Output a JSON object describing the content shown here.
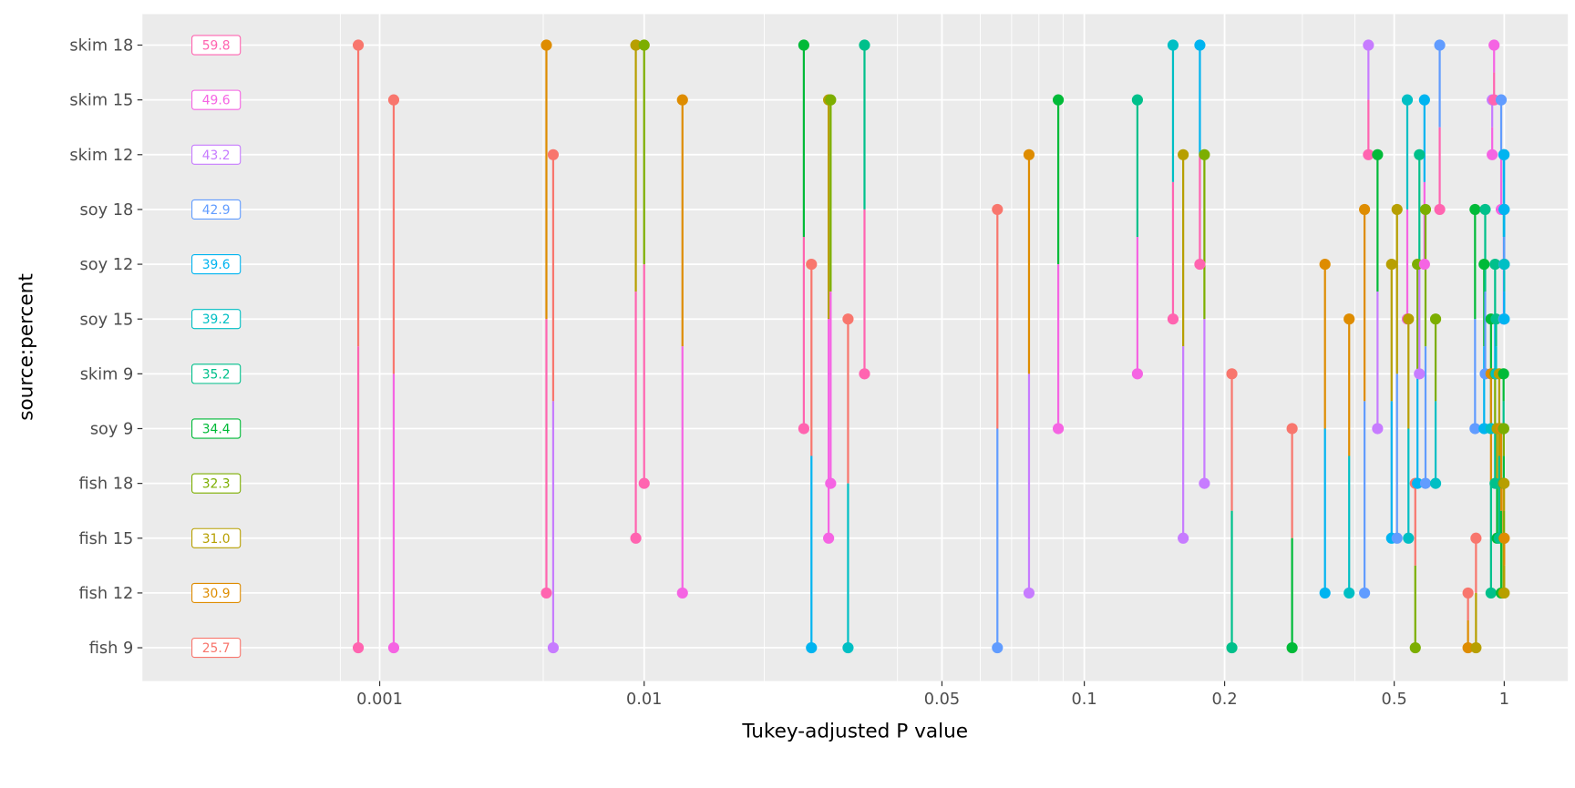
{
  "chart_data": {
    "type": "pairwise-pvalue",
    "xlabel": "Tukey-adjusted P value",
    "ylabel": "source:percent",
    "x_ticks": [
      0.001,
      0.01,
      0.05,
      0.1,
      0.2,
      0.5,
      1
    ],
    "x_tick_labels": [
      "0.001",
      "0.01",
      "0.05",
      "0.1",
      "0.2",
      "0.5",
      "1"
    ],
    "grid": true,
    "legend": "none",
    "groups": [
      {
        "label": "fish 9",
        "mean": "25.7",
        "color": "#F8766D"
      },
      {
        "label": "fish 12",
        "mean": "30.9",
        "color": "#DE8C00"
      },
      {
        "label": "fish 15",
        "mean": "31.0",
        "color": "#B79F00"
      },
      {
        "label": "fish 18",
        "mean": "32.3",
        "color": "#7CAE00"
      },
      {
        "label": "soy 9",
        "mean": "34.4",
        "color": "#00BA38"
      },
      {
        "label": "skim 9",
        "mean": "35.2",
        "color": "#00C08B"
      },
      {
        "label": "soy 15",
        "mean": "39.2",
        "color": "#00BFC4"
      },
      {
        "label": "soy 12",
        "mean": "39.6",
        "color": "#00B4F0"
      },
      {
        "label": "soy 18",
        "mean": "42.9",
        "color": "#619CFF"
      },
      {
        "label": "skim 12",
        "mean": "43.2",
        "color": "#C77CFF"
      },
      {
        "label": "skim 15",
        "mean": "49.6",
        "color": "#F564E3"
      },
      {
        "label": "skim 18",
        "mean": "59.8",
        "color": "#FF64B0"
      }
    ],
    "comparisons": [
      {
        "a": "skim 18",
        "b": "fish 9",
        "p": 0.00083
      },
      {
        "a": "skim 15",
        "b": "fish 9",
        "p": 0.00113
      },
      {
        "a": "skim 18",
        "b": "fish 12",
        "p": 0.00427
      },
      {
        "a": "skim 12",
        "b": "fish 9",
        "p": 0.00453
      },
      {
        "a": "skim 18",
        "b": "fish 15",
        "p": 0.0093
      },
      {
        "a": "skim 18",
        "b": "fish 18",
        "p": 0.01
      },
      {
        "a": "skim 15",
        "b": "fish 12",
        "p": 0.0123
      },
      {
        "a": "skim 18",
        "b": "soy 9",
        "p": 0.0237
      },
      {
        "a": "soy 12",
        "b": "fish 9",
        "p": 0.0247
      },
      {
        "a": "skim 15",
        "b": "fish 15",
        "p": 0.0271
      },
      {
        "a": "skim 15",
        "b": "fish 18",
        "p": 0.0274
      },
      {
        "a": "soy 15",
        "b": "fish 9",
        "p": 0.0301
      },
      {
        "a": "skim 18",
        "b": "skim 9",
        "p": 0.0329
      },
      {
        "a": "soy 18",
        "b": "fish 9",
        "p": 0.0655
      },
      {
        "a": "skim 12",
        "b": "fish 12",
        "p": 0.0764
      },
      {
        "a": "skim 15",
        "b": "soy 9",
        "p": 0.0881
      },
      {
        "a": "skim 15",
        "b": "skim 9",
        "p": 0.13
      },
      {
        "a": "skim 18",
        "b": "soy 15",
        "p": 0.155
      },
      {
        "a": "skim 12",
        "b": "fish 15",
        "p": 0.163
      },
      {
        "a": "skim 18",
        "b": "soy 12",
        "p": 0.177
      },
      {
        "a": "skim 12",
        "b": "fish 18",
        "p": 0.181
      },
      {
        "a": "skim 9",
        "b": "fish 9",
        "p": 0.208
      },
      {
        "a": "soy 9",
        "b": "fish 9",
        "p": 0.288
      },
      {
        "a": "soy 12",
        "b": "fish 12",
        "p": 0.344
      },
      {
        "a": "soy 15",
        "b": "fish 12",
        "p": 0.392
      },
      {
        "a": "soy 18",
        "b": "fish 12",
        "p": 0.426
      },
      {
        "a": "skim 18",
        "b": "skim 12",
        "p": 0.435
      },
      {
        "a": "skim 12",
        "b": "soy 9",
        "p": 0.457
      },
      {
        "a": "soy 12",
        "b": "fish 15",
        "p": 0.493
      },
      {
        "a": "soy 18",
        "b": "fish 15",
        "p": 0.509
      },
      {
        "a": "skim 15",
        "b": "soy 15",
        "p": 0.543
      },
      {
        "a": "soy 15",
        "b": "fish 15",
        "p": 0.547
      },
      {
        "a": "fish 18",
        "b": "fish 9",
        "p": 0.571
      },
      {
        "a": "soy 12",
        "b": "fish 18",
        "p": 0.579
      },
      {
        "a": "skim 12",
        "b": "skim 9",
        "p": 0.586
      },
      {
        "a": "skim 15",
        "b": "soy 12",
        "p": 0.605
      },
      {
        "a": "soy 18",
        "b": "fish 18",
        "p": 0.609
      },
      {
        "a": "soy 15",
        "b": "fish 18",
        "p": 0.649
      },
      {
        "a": "skim 18",
        "b": "soy 18",
        "p": 0.666
      },
      {
        "a": "fish 12",
        "b": "fish 9",
        "p": 0.796
      },
      {
        "a": "soy 18",
        "b": "soy 9",
        "p": 0.832
      },
      {
        "a": "fish 15",
        "b": "fish 9",
        "p": 0.837
      },
      {
        "a": "soy 12",
        "b": "soy 9",
        "p": 0.881
      },
      {
        "a": "soy 18",
        "b": "skim 9",
        "p": 0.887
      },
      {
        "a": "soy 15",
        "b": "soy 9",
        "p": 0.92
      },
      {
        "a": "skim 9",
        "b": "fish 12",
        "p": 0.92
      },
      {
        "a": "skim 15",
        "b": "skim 12",
        "p": 0.927
      },
      {
        "a": "skim 18",
        "b": "skim 15",
        "p": 0.938
      },
      {
        "a": "soy 12",
        "b": "skim 9",
        "p": 0.944
      },
      {
        "a": "skim 9",
        "b": "fish 18",
        "p": 0.944
      },
      {
        "a": "soy 15",
        "b": "skim 9",
        "p": 0.95
      },
      {
        "a": "soy 9",
        "b": "fish 15",
        "p": 0.956
      },
      {
        "a": "skim 9",
        "b": "fish 15",
        "p": 0.969
      },
      {
        "a": "skim 15",
        "b": "soy 18",
        "p": 0.981
      },
      {
        "a": "soy 9",
        "b": "fish 12",
        "p": 0.981
      },
      {
        "a": "fish 18",
        "b": "fish 12",
        "p": 0.995
      },
      {
        "a": "skim 9",
        "b": "soy 9",
        "p": 0.996
      },
      {
        "a": "skim 12",
        "b": "soy 15",
        "p": 0.997
      },
      {
        "a": "soy 9",
        "b": "fish 18",
        "p": 0.997
      },
      {
        "a": "skim 12",
        "b": "soy 18",
        "p": 0.998
      },
      {
        "a": "skim 12",
        "b": "soy 12",
        "p": 0.999
      },
      {
        "a": "soy 18",
        "b": "soy 15",
        "p": 0.999
      },
      {
        "a": "fish 18",
        "b": "fish 15",
        "p": 0.999
      },
      {
        "a": "soy 18",
        "b": "soy 12",
        "p": 1.0
      },
      {
        "a": "soy 12",
        "b": "soy 15",
        "p": 1.0
      },
      {
        "a": "fish 15",
        "b": "fish 12",
        "p": 1.0
      }
    ]
  }
}
